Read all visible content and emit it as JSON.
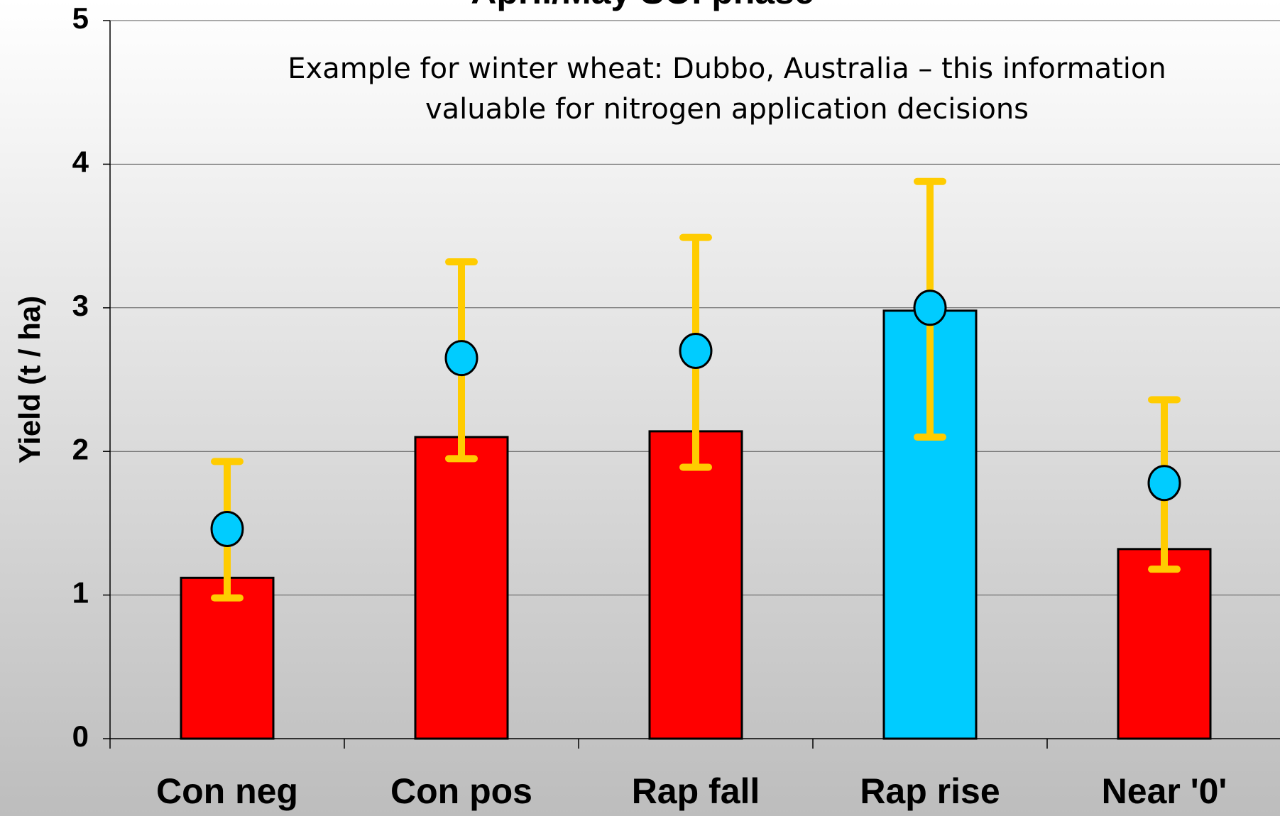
{
  "chart_data": {
    "type": "bar",
    "title": "April/May SOI phase",
    "annotation": [
      "Example for winter wheat: Dubbo, Australia – this information",
      "valuable for nitrogen application decisions"
    ],
    "y_label": "Yield (t / ha)",
    "categories": [
      "Con neg",
      "Con pos",
      "Rap fall",
      "Rap rise",
      "Near '0'"
    ],
    "series": [
      {
        "type": "bar",
        "values": [
          1.12,
          2.1,
          2.14,
          2.98,
          1.32
        ],
        "colors": [
          "#ff0000",
          "#ff0000",
          "#ff0000",
          "#00ccff",
          "#ff0000"
        ]
      },
      {
        "type": "point",
        "color": "#00ccff",
        "error_color": "#ffcc00",
        "values": [
          1.46,
          2.65,
          2.7,
          3.0,
          1.78
        ],
        "low": [
          0.98,
          1.95,
          1.89,
          2.1,
          1.18
        ],
        "high": [
          1.93,
          3.32,
          3.49,
          3.88,
          2.36
        ]
      }
    ],
    "ylim": [
      0,
      5
    ],
    "yticks": [
      0,
      1,
      2,
      3,
      4,
      5
    ],
    "grid": true
  }
}
